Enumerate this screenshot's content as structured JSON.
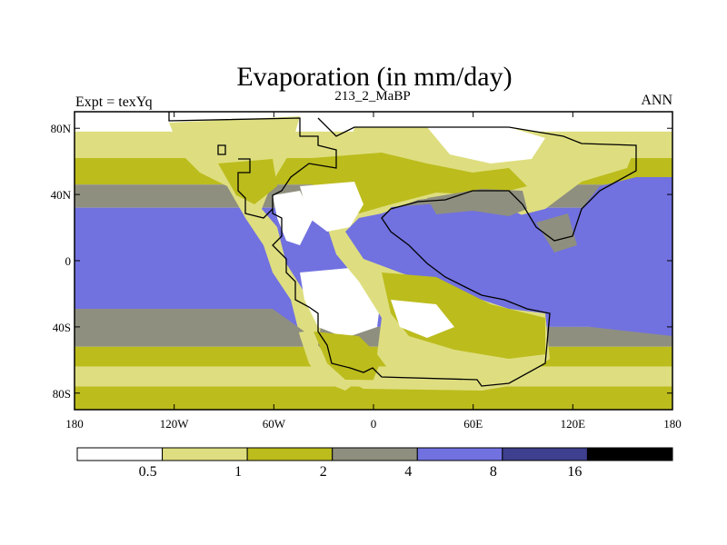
{
  "chart_data": {
    "type": "heatmap",
    "title": "Evaporation (in mm/day)",
    "left_label": "Expt = texYq",
    "center_label": "213_2_MaBP",
    "right_label": "ANN",
    "x_ticks": [
      "180",
      "120W",
      "60W",
      "0",
      "60E",
      "120E",
      "180"
    ],
    "x_tick_values": [
      -180,
      -120,
      -60,
      0,
      60,
      120,
      180
    ],
    "y_ticks": [
      "80N",
      "40N",
      "0",
      "40S",
      "80S"
    ],
    "y_tick_values": [
      80,
      40,
      0,
      -40,
      -80
    ],
    "xlim": [
      -180,
      180
    ],
    "ylim": [
      -90,
      90
    ],
    "colorbar": {
      "levels": [
        "0.5",
        "1",
        "2",
        "4",
        "8",
        "16"
      ],
      "colors": [
        "#ffffff",
        "#dede80",
        "#bcbc1d",
        "#8f8f80",
        "#7171e0",
        "#3f3f8f",
        "#000000"
      ]
    },
    "field_bands": [
      {
        "lat_min": 78,
        "lat_max": 90,
        "level": "<0.5"
      },
      {
        "lat_min": 62,
        "lat_max": 78,
        "level": "0.5-1"
      },
      {
        "lat_min": 46,
        "lat_max": 62,
        "level": "1-2"
      },
      {
        "lat_min": 32,
        "lat_max": 46,
        "level": "2-4"
      },
      {
        "lat_min": -40,
        "lat_max": 32,
        "level": "4-8"
      },
      {
        "lat_min": -52,
        "lat_max": -40,
        "level": "2-4"
      },
      {
        "lat_min": -64,
        "lat_max": -52,
        "level": "1-2"
      },
      {
        "lat_min": -76,
        "lat_max": -64,
        "level": "0.5-1"
      },
      {
        "lat_min": -90,
        "lat_max": -76,
        "level": "1-2"
      }
    ]
  }
}
